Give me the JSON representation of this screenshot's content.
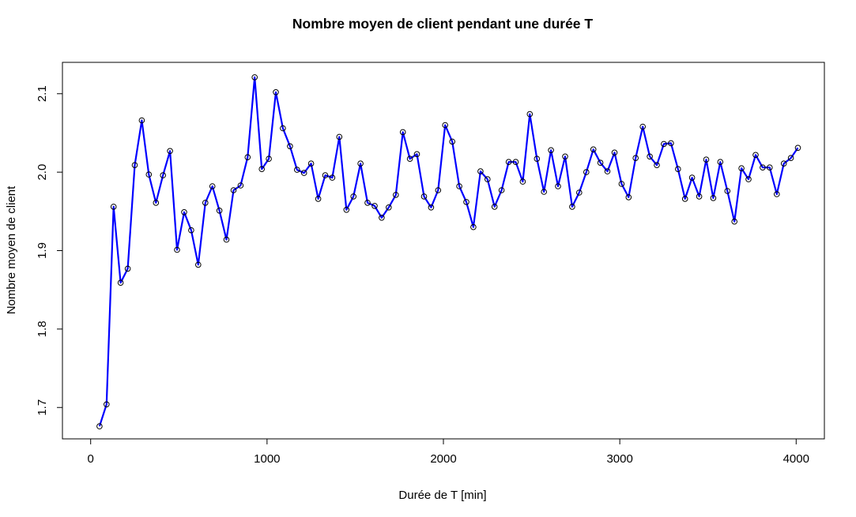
{
  "chart_data": {
    "type": "line",
    "title": "Nombre moyen de client pendant une durée T",
    "xlabel": "Durée de T [min]",
    "ylabel": "Nombre moyen de client",
    "xlim": [
      -160,
      4160
    ],
    "ylim": [
      1.66,
      2.14
    ],
    "xticks": [
      0,
      1000,
      2000,
      3000,
      4000
    ],
    "xtick_labels": [
      "0",
      "1000",
      "2000",
      "3000",
      "4000"
    ],
    "yticks": [
      1.7,
      1.8,
      1.9,
      2.0,
      2.1
    ],
    "ytick_labels": [
      "1.7",
      "1.8",
      "1.9",
      "2.0",
      "2.1"
    ],
    "grid": false,
    "legend": false,
    "line_color": "#0000ff",
    "marker_color": "#000000",
    "series": [
      {
        "x": [
          50,
          90,
          130,
          170,
          210,
          250,
          290,
          330,
          370,
          410,
          450,
          490,
          530,
          570,
          610,
          650,
          690,
          730,
          770,
          810,
          850,
          890,
          930,
          970,
          1010,
          1050,
          1090,
          1130,
          1170,
          1210,
          1250,
          1290,
          1330,
          1370,
          1410,
          1450,
          1490,
          1530,
          1570,
          1610,
          1650,
          1690,
          1730,
          1770,
          1810,
          1850,
          1890,
          1930,
          1970,
          2010,
          2050,
          2090,
          2130,
          2170,
          2210,
          2250,
          2290,
          2330,
          2370,
          2410,
          2450,
          2490,
          2530,
          2570,
          2610,
          2650,
          2690,
          2730,
          2770,
          2810,
          2850,
          2890,
          2930,
          2970,
          3010,
          3050,
          3090,
          3130,
          3170,
          3210,
          3250,
          3290,
          3330,
          3370,
          3410,
          3450,
          3490,
          3530,
          3570,
          3610,
          3650,
          3690,
          3730,
          3770,
          3810,
          3850,
          3890,
          3930,
          3970,
          4010
        ],
        "y": [
          1.676,
          1.704,
          1.956,
          1.859,
          1.877,
          2.009,
          2.066,
          1.997,
          1.961,
          1.996,
          2.027,
          1.901,
          1.949,
          1.926,
          1.882,
          1.961,
          1.982,
          1.951,
          1.914,
          1.977,
          1.983,
          2.019,
          2.121,
          2.004,
          2.017,
          2.102,
          2.056,
          2.033,
          2.003,
          1.999,
          2.011,
          1.966,
          1.996,
          1.993,
          2.045,
          1.952,
          1.969,
          2.011,
          1.961,
          1.957,
          1.942,
          1.955,
          1.971,
          2.051,
          2.017,
          2.023,
          1.969,
          1.955,
          1.977,
          2.06,
          2.039,
          1.982,
          1.962,
          1.93,
          2.001,
          1.991,
          1.956,
          1.977,
          2.013,
          2.013,
          1.988,
          2.074,
          2.017,
          1.975,
          2.028,
          1.982,
          2.02,
          1.956,
          1.974,
          2.0,
          2.029,
          2.012,
          2.001,
          2.025,
          1.985,
          1.968,
          2.018,
          2.058,
          2.02,
          2.009,
          2.036,
          2.037,
          2.004,
          1.966,
          1.993,
          1.969,
          2.016,
          1.967,
          2.013,
          1.976,
          1.937,
          2.005,
          1.991,
          2.022,
          2.006,
          2.006,
          1.972,
          2.011,
          2.018,
          2.031
        ]
      }
    ]
  }
}
